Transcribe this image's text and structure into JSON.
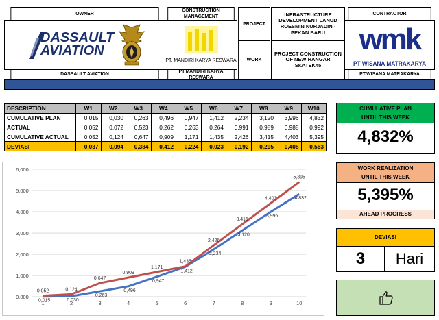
{
  "header": {
    "owner_label": "OWNER",
    "cm_label": "CONSTRUCTION MANAGEMENT",
    "project_label": "PROJECT",
    "project_value": "INFRASTRUCTURE DEVELOPMENT LANUD ROESMIN NURJADIN - PEKAN BARU",
    "work_label": "WORK",
    "work_value": "PROJECT CONSTRUCTION OF NEW HANGAR SKATEK45",
    "contractor_label": "CONTRACTOR",
    "owner_logo_line1": "DASSAULT",
    "owner_logo_line2": "AVIATION",
    "owner_name": "DASSAULT AVIATION",
    "cm_logo_caption": "PT. MANDIRI KARYA RESWARA",
    "cm_name": "PT.MANDIRI KARYA RESWARA",
    "contractor_logo_mark": "wmk",
    "contractor_logo_caption": "PT WISANA MATRAKARYA",
    "contractor_name": "PT.WISANA MATRAKARYA"
  },
  "table": {
    "columns": [
      "DESCRIPTION",
      "W1",
      "W2",
      "W3",
      "W4",
      "W5",
      "W6",
      "W7",
      "W8",
      "W9",
      "W10"
    ],
    "rows": [
      {
        "label": "CUMULATIVE PLAN",
        "values": [
          "0,015",
          "0,030",
          "0,263",
          "0,496",
          "0,947",
          "1,412",
          "2,234",
          "3,120",
          "3,996",
          "4,832"
        ]
      },
      {
        "label": "ACTUAL",
        "values": [
          "0,052",
          "0,072",
          "0,523",
          "0,262",
          "0,263",
          "0,264",
          "0,991",
          "0,989",
          "0,988",
          "0,992"
        ]
      },
      {
        "label": "CUMULATIVE ACTUAL",
        "values": [
          "0,052",
          "0,124",
          "0,647",
          "0,909",
          "1,171",
          "1,435",
          "2,426",
          "3,415",
          "4,403",
          "5,395"
        ]
      },
      {
        "label": "DEVIASI",
        "values": [
          "0,037",
          "0,094",
          "0,384",
          "0,412",
          "0,224",
          "0,023",
          "0,192",
          "0,295",
          "0,408",
          "0,563"
        ]
      }
    ]
  },
  "kpi": {
    "plan_title_1": "CUMULATIVE PLAN",
    "plan_title_2": "UNTIL THIS WEEK",
    "plan_value": "4,832%",
    "real_title_1": "WORK REALIZATION",
    "real_title_2": "UNTIL THIS WEEK",
    "real_value": "5,395%",
    "real_status": "AHEAD PROGRESS",
    "dev_title": "DEVIASI",
    "dev_value": "3",
    "dev_unit": "Hari",
    "status_icon": "thumbs-up-icon"
  },
  "colors": {
    "green": "#00b050",
    "orange": "#f4b183",
    "peach": "#fbe5d6",
    "gold": "#ffc000",
    "light_green": "#c5e0b4",
    "navy_bar": "#2f5597",
    "dev_row": "#f9bf00",
    "plan_line": "#4472c4",
    "actual_line": "#c0504d"
  },
  "chart_data": {
    "type": "line",
    "x": [
      1,
      2,
      3,
      4,
      5,
      6,
      7,
      8,
      9,
      10
    ],
    "ylim": [
      0,
      6
    ],
    "yticks": [
      "0,000",
      "1,000",
      "2,000",
      "3,000",
      "4,000",
      "5,000",
      "6,000"
    ],
    "series": [
      {
        "color": "#4472c4",
        "values": [
          0.015,
          0.03,
          0.263,
          0.496,
          0.947,
          1.412,
          2.234,
          3.12,
          3.996,
          4.832
        ],
        "labels": [
          "0,015",
          "0,030",
          "0,263",
          "0,496",
          "0,947",
          "1,412",
          "2,234",
          "3,120",
          "3,996",
          "4,832"
        ]
      },
      {
        "color": "#c0504d",
        "values": [
          0.052,
          0.124,
          0.647,
          0.909,
          1.171,
          1.435,
          2.426,
          3.415,
          4.403,
          5.395
        ],
        "labels": [
          "0,052",
          "0,124",
          "0,647",
          "0,909",
          "1,171",
          "1,435",
          "2,426",
          "3,415",
          "4,403",
          "5,395"
        ]
      }
    ]
  }
}
